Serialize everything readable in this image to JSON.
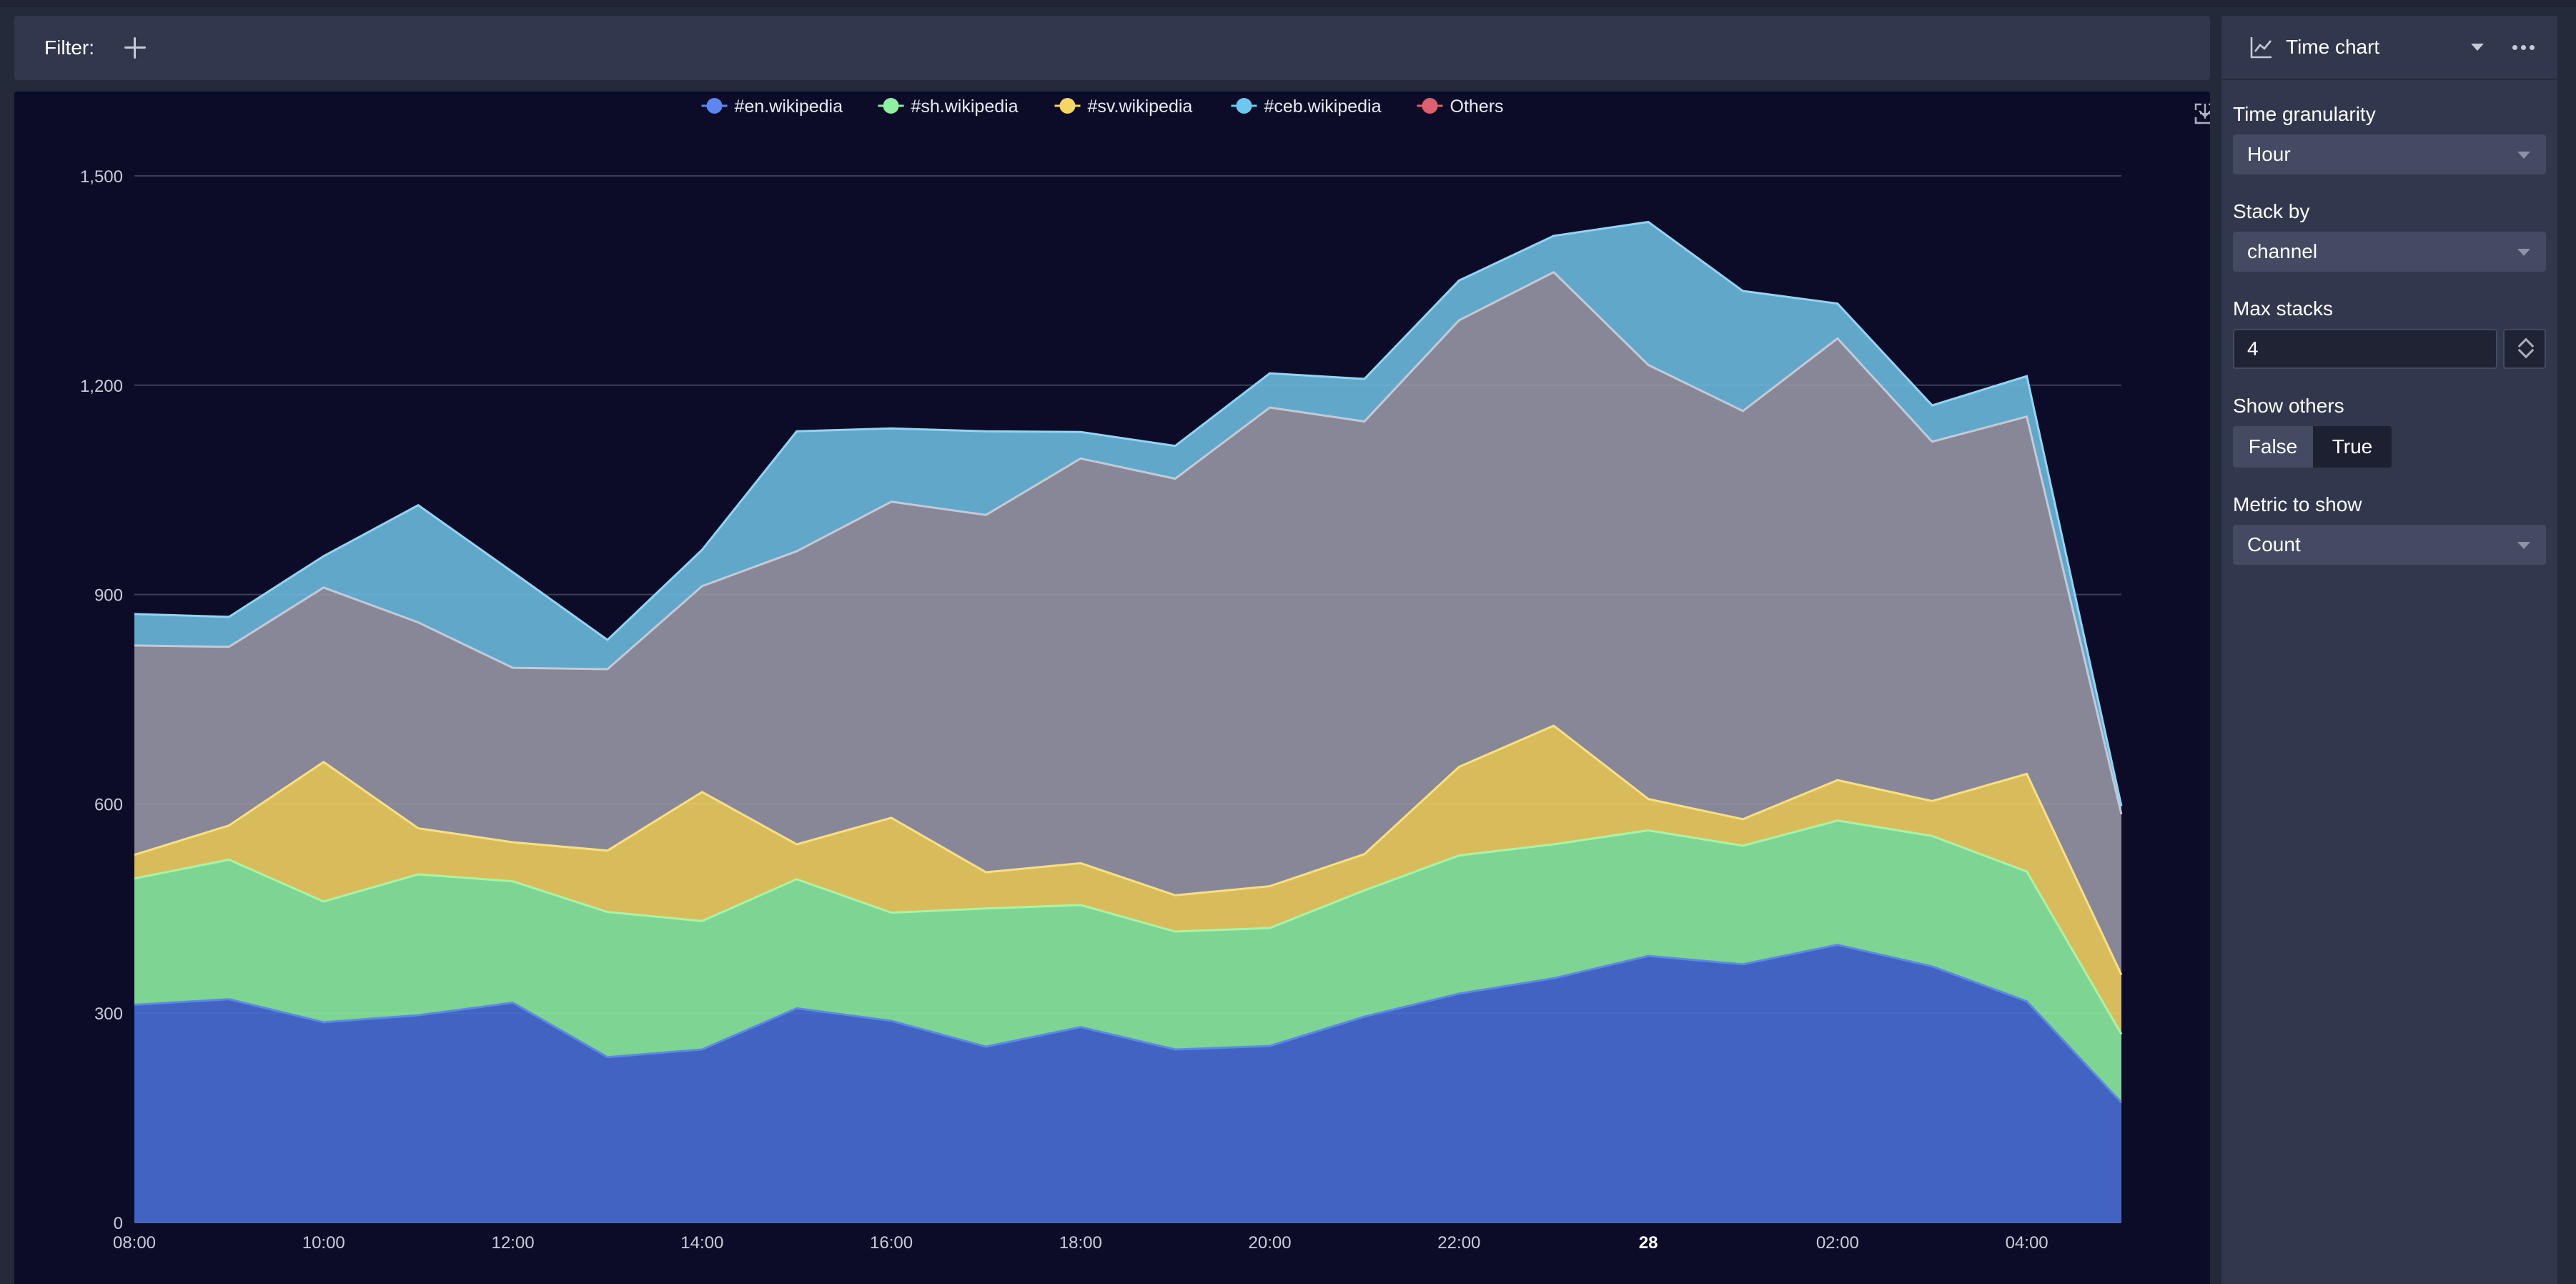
{
  "filter": {
    "label": "Filter:"
  },
  "panel": {
    "title": "Time chart",
    "controls": {
      "time_granularity": {
        "label": "Time granularity",
        "value": "Hour"
      },
      "stack_by": {
        "label": "Stack by",
        "value": "channel"
      },
      "max_stacks": {
        "label": "Max stacks",
        "value": "4"
      },
      "show_others": {
        "label": "Show others",
        "false_label": "False",
        "true_label": "True",
        "selected": "True"
      },
      "metric": {
        "label": "Metric to show",
        "value": "Count"
      }
    }
  },
  "chart_data": {
    "type": "area",
    "stacked": true,
    "x": [
      "08:00",
      "09:00",
      "10:00",
      "11:00",
      "12:00",
      "13:00",
      "14:00",
      "15:00",
      "16:00",
      "17:00",
      "18:00",
      "19:00",
      "20:00",
      "21:00",
      "22:00",
      "23:00",
      "28",
      "01:00",
      "02:00",
      "03:00",
      "04:00",
      "05:00"
    ],
    "x_tick_labels": [
      "08:00",
      "10:00",
      "12:00",
      "14:00",
      "16:00",
      "18:00",
      "20:00",
      "22:00",
      "28",
      "02:00",
      "04:00"
    ],
    "x_tick_bold": [
      "28"
    ],
    "ylim": [
      0,
      1500
    ],
    "y_ticks": [
      0,
      300,
      600,
      900,
      1200,
      1500
    ],
    "y_tick_labels": [
      "0",
      "300",
      "600",
      "900",
      "1,200",
      "1,500"
    ],
    "grid": true,
    "legend_position": "top-center",
    "series": [
      {
        "name": "#en.wikipedia",
        "color": "#4a6fd6",
        "values": [
          312,
          320,
          287,
          297,
          315,
          237,
          248,
          307,
          289,
          252,
          280,
          248,
          253,
          295,
          328,
          350,
          382,
          370,
          398,
          367,
          317,
          172
        ]
      },
      {
        "name": "#sh.wikipedia",
        "color": "#8ef0a0",
        "values": [
          181,
          200,
          173,
          202,
          174,
          208,
          184,
          185,
          155,
          198,
          175,
          169,
          169,
          181,
          198,
          192,
          180,
          170,
          178,
          187,
          186,
          98
        ]
      },
      {
        "name": "#sv.wikipedia",
        "color": "#f5d563",
        "values": [
          34,
          49,
          200,
          66,
          56,
          88,
          185,
          50,
          136,
          52,
          60,
          52,
          60,
          52,
          127,
          170,
          45,
          38,
          58,
          50,
          140,
          85
        ]
      },
      {
        "name": "Others",
        "color": "#9a99a6",
        "values": [
          300,
          256,
          250,
          295,
          250,
          260,
          295,
          420,
          453,
          512,
          580,
          597,
          686,
          620,
          640,
          650,
          622,
          585,
          633,
          515,
          512,
          230
        ]
      },
      {
        "name": "#ceb.wikipedia",
        "color": "#6cbde0",
        "values": [
          45,
          43,
          45,
          168,
          137,
          42,
          52,
          172,
          105,
          120,
          38,
          47,
          49,
          61,
          57,
          52,
          205,
          172,
          50,
          52,
          58,
          12
        ]
      }
    ],
    "legend": [
      {
        "name": "#en.wikipedia",
        "color": "#5c86f0"
      },
      {
        "name": "#sh.wikipedia",
        "color": "#8ef0a0"
      },
      {
        "name": "#sv.wikipedia",
        "color": "#f5d563"
      },
      {
        "name": "#ceb.wikipedia",
        "color": "#6cc8ef"
      },
      {
        "name": "Others",
        "color": "#e06070"
      }
    ]
  }
}
